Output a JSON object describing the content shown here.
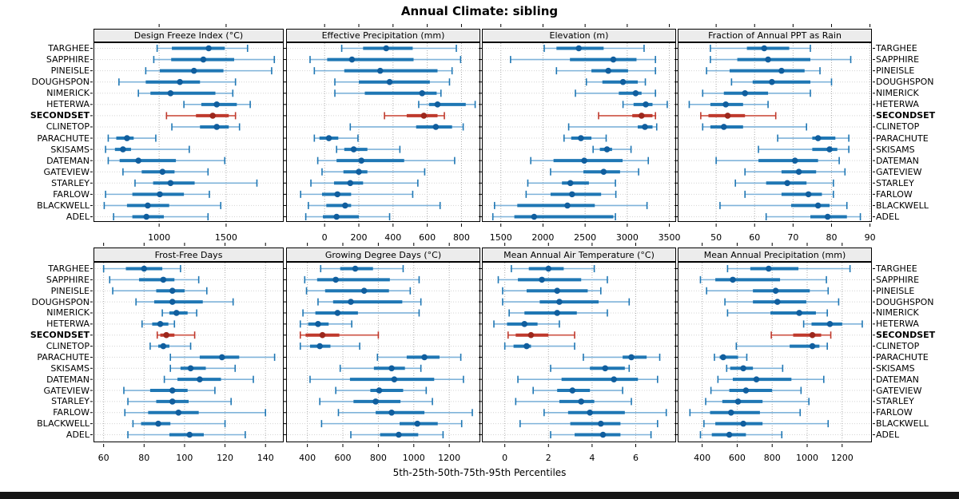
{
  "title": "Annual Climate: sibling",
  "footer": "5th-25th-50th-75th-95th Percentiles",
  "percentiles": [
    5,
    25,
    50,
    75,
    95
  ],
  "highlight_site": "SECONDSET",
  "sites": [
    "TARGHEE",
    "SAPPHIRE",
    "PINEISLE",
    "DOUGHSPON",
    "NIMERICK",
    "HETERWA",
    "SECONDSET",
    "CLINETOP",
    "PARACHUTE",
    "SKISAMS",
    "DATEMAN",
    "GATEVIEW",
    "STARLEY",
    "FARLOW",
    "BLACKWELL",
    "ADEL"
  ],
  "colors": {
    "bar_blue": "#1f77b4",
    "whisker_blue": "#7fb3da",
    "dot_blue": "#105e9e",
    "bar_red": "#bf392c",
    "whisker_red": "#cd5243",
    "dot_red": "#9c271c",
    "grid": "#ababab",
    "row_guide": "#d4d4d4",
    "panel_border": "#000000",
    "header_bg": "#ececec",
    "bottom_bar": "#161616"
  },
  "chart_data": [
    {
      "type": "percentile_dotplot",
      "title": "Design Freeze Index (°C)",
      "xlim": [
        510,
        1930
      ],
      "ticks": [
        1000,
        1500
      ],
      "values": [
        [
          985,
          1095,
          1370,
          1490,
          1660
        ],
        [
          960,
          1090,
          1330,
          1560,
          1860
        ],
        [
          900,
          1005,
          1260,
          1480,
          1840
        ],
        [
          700,
          900,
          1155,
          1305,
          1570
        ],
        [
          845,
          935,
          1085,
          1420,
          1550
        ],
        [
          1185,
          1315,
          1430,
          1580,
          1680
        ],
        [
          1055,
          1275,
          1400,
          1520,
          1570
        ],
        [
          1095,
          1305,
          1430,
          1520,
          1600
        ],
        [
          620,
          680,
          760,
          810,
          975
        ],
        [
          600,
          670,
          730,
          790,
          1225
        ],
        [
          620,
          705,
          845,
          1125,
          1490
        ],
        [
          730,
          870,
          1025,
          1115,
          1365
        ],
        [
          820,
          955,
          1085,
          1265,
          1730
        ],
        [
          600,
          800,
          1005,
          1185,
          1375
        ],
        [
          590,
          760,
          915,
          1075,
          1460
        ],
        [
          660,
          800,
          905,
          1035,
          1365
        ]
      ]
    },
    {
      "type": "percentile_dotplot",
      "title": "Effective Precipitation (mm)",
      "xlim": [
        -225,
        910
      ],
      "ticks": [
        0,
        200,
        400,
        600,
        800
      ],
      "values": [
        [
          100,
          225,
          360,
          515,
          770
        ],
        [
          -85,
          15,
          160,
          520,
          795
        ],
        [
          -60,
          115,
          325,
          660,
          745
        ],
        [
          60,
          200,
          380,
          615,
          730
        ],
        [
          60,
          235,
          570,
          655,
          680
        ],
        [
          550,
          610,
          660,
          825,
          880
        ],
        [
          350,
          480,
          580,
          660,
          700
        ],
        [
          150,
          535,
          650,
          745,
          810
        ],
        [
          -60,
          -30,
          25,
          80,
          195
        ],
        [
          70,
          115,
          170,
          250,
          440
        ],
        [
          -40,
          70,
          215,
          465,
          760
        ],
        [
          -15,
          110,
          200,
          250,
          585
        ],
        [
          -80,
          55,
          150,
          225,
          545
        ],
        [
          -140,
          -15,
          75,
          155,
          515
        ],
        [
          -95,
          10,
          120,
          155,
          675
        ],
        [
          -110,
          -10,
          70,
          200,
          380
        ]
      ]
    },
    {
      "type": "percentile_dotplot",
      "title": "Elevation (m)",
      "xlim": [
        1275,
        3580
      ],
      "ticks": [
        1500,
        2000,
        2500,
        3000,
        3500
      ],
      "values": [
        [
          2015,
          2160,
          2425,
          2720,
          3200
        ],
        [
          1615,
          2320,
          2835,
          3110,
          3335
        ],
        [
          2160,
          2575,
          2775,
          3010,
          3335
        ],
        [
          2515,
          2705,
          2950,
          3125,
          3215
        ],
        [
          2385,
          2900,
          3100,
          3170,
          3335
        ],
        [
          2950,
          3075,
          3220,
          3300,
          3475
        ],
        [
          2660,
          3060,
          3170,
          3300,
          3335
        ],
        [
          2305,
          3125,
          3210,
          3300,
          3350
        ],
        [
          2250,
          2335,
          2450,
          2575,
          2750
        ],
        [
          2595,
          2675,
          2760,
          2820,
          3045
        ],
        [
          1855,
          2125,
          2490,
          2945,
          3250
        ],
        [
          2090,
          2480,
          2720,
          2915,
          3135
        ],
        [
          1820,
          2225,
          2325,
          2545,
          2860
        ],
        [
          1800,
          2090,
          2345,
          2690,
          2865
        ],
        [
          1425,
          1695,
          2290,
          2615,
          3235
        ],
        [
          1405,
          1660,
          1895,
          2835,
          2860
        ]
      ]
    },
    {
      "type": "percentile_dotplot",
      "title": "Fraction of Annual PPT as Rain",
      "xlim": [
        40,
        90.5
      ],
      "ticks": [
        50,
        60,
        70,
        80,
        90
      ],
      "values": [
        [
          48.5,
          58,
          62.5,
          69,
          74.5
        ],
        [
          48.5,
          55.5,
          63.5,
          74.5,
          85
        ],
        [
          47.5,
          53.5,
          67,
          73,
          77
        ],
        [
          54,
          59.5,
          64.5,
          74.5,
          80
        ],
        [
          46.5,
          52,
          57.5,
          63.5,
          74.5
        ],
        [
          43,
          48.5,
          52.5,
          57,
          63.5
        ],
        [
          46,
          48,
          53,
          57.5,
          65.5
        ],
        [
          46.5,
          48.5,
          52,
          57,
          73.5
        ],
        [
          66,
          75,
          76.5,
          81,
          84.5
        ],
        [
          61,
          75,
          79.5,
          81.5,
          84.5
        ],
        [
          50,
          61,
          70.5,
          76.5,
          82
        ],
        [
          57.5,
          67,
          71.5,
          76,
          83.5
        ],
        [
          55,
          63,
          68.5,
          73.5,
          80.5
        ],
        [
          57.5,
          67,
          74,
          77.5,
          80.5
        ],
        [
          51,
          69.5,
          76.5,
          79.5,
          84
        ],
        [
          63,
          74.5,
          79,
          84,
          87.5
        ]
      ]
    },
    {
      "type": "percentile_dotplot",
      "title": "Frost-Free Days",
      "xlim": [
        55,
        149
      ],
      "ticks": [
        60,
        80,
        100,
        120,
        140
      ],
      "values": [
        [
          60,
          71,
          80,
          89,
          98
        ],
        [
          63,
          77.5,
          89.5,
          95,
          107
        ],
        [
          64.5,
          86,
          94,
          100,
          111
        ],
        [
          76,
          85,
          94,
          109,
          124
        ],
        [
          89,
          92.5,
          96,
          101.5,
          106
        ],
        [
          79,
          84,
          88,
          92,
          95
        ],
        [
          86.5,
          88,
          91,
          95,
          105
        ],
        [
          83,
          87,
          89.5,
          92.5,
          103
        ],
        [
          93,
          107.5,
          118.5,
          127,
          144.5
        ],
        [
          93,
          98,
          103,
          110.5,
          125
        ],
        [
          90,
          96.5,
          107.5,
          118,
          134
        ],
        [
          70,
          83,
          94,
          101.5,
          115
        ],
        [
          72,
          86,
          94,
          102,
          123
        ],
        [
          70.5,
          82,
          97,
          107,
          140
        ],
        [
          74.5,
          78.5,
          87,
          93,
          120
        ],
        [
          72,
          92.5,
          102.5,
          109.5,
          130
        ]
      ]
    },
    {
      "type": "percentile_dotplot",
      "title": "Growing Degree Days (°C)",
      "xlim": [
        280,
        1375
      ],
      "ticks": [
        400,
        600,
        800,
        1000,
        1200
      ],
      "values": [
        [
          475,
          585,
          670,
          770,
          940
        ],
        [
          385,
          455,
          560,
          865,
          1030
        ],
        [
          395,
          500,
          720,
          860,
          980
        ],
        [
          460,
          545,
          645,
          935,
          1040
        ],
        [
          375,
          445,
          570,
          685,
          1030
        ],
        [
          360,
          405,
          460,
          520,
          650
        ],
        [
          360,
          390,
          485,
          580,
          800
        ],
        [
          360,
          415,
          470,
          530,
          695
        ],
        [
          795,
          960,
          1060,
          1145,
          1265
        ],
        [
          585,
          775,
          875,
          950,
          1040
        ],
        [
          415,
          640,
          890,
          1115,
          1280
        ],
        [
          560,
          755,
          805,
          940,
          1070
        ],
        [
          470,
          660,
          785,
          925,
          1105
        ],
        [
          575,
          785,
          875,
          1060,
          1330
        ],
        [
          480,
          920,
          1020,
          1135,
          1270
        ],
        [
          645,
          810,
          915,
          1025,
          1165
        ]
      ]
    },
    {
      "type": "percentile_dotplot",
      "title": "Mean Annual Air Temperature (°C)",
      "xlim": [
        -1.05,
        7.85
      ],
      "ticks": [
        0,
        2,
        4,
        6
      ],
      "values": [
        [
          0.3,
          1.1,
          2.0,
          2.7,
          4.1
        ],
        [
          -0.3,
          0.6,
          1.7,
          3.5,
          4.7
        ],
        [
          -0.1,
          1.0,
          2.4,
          3.8,
          4.4
        ],
        [
          -0.1,
          1.6,
          2.5,
          4.3,
          5.7
        ],
        [
          0.2,
          0.9,
          2.4,
          3.3,
          4.7
        ],
        [
          -0.5,
          0.1,
          0.9,
          1.5,
          2.5
        ],
        [
          0.15,
          0.5,
          1.2,
          2.0,
          3.2
        ],
        [
          0.0,
          0.4,
          1.0,
          1.2,
          3.2
        ],
        [
          3.6,
          5.4,
          5.8,
          6.5,
          7.1
        ],
        [
          2.1,
          3.9,
          4.6,
          5.5,
          5.7
        ],
        [
          0.6,
          2.6,
          5.0,
          6.1,
          7.0
        ],
        [
          1.3,
          2.4,
          3.1,
          3.9,
          5.4
        ],
        [
          0.5,
          2.5,
          3.5,
          4.1,
          5.8
        ],
        [
          1.8,
          2.9,
          3.9,
          5.5,
          7.4
        ],
        [
          0.7,
          3.0,
          4.4,
          5.3,
          7.0
        ],
        [
          2.1,
          3.2,
          4.5,
          5.3,
          6.7
        ]
      ]
    },
    {
      "type": "percentile_dotplot",
      "title": "Mean Annual Precipitation (mm)",
      "xlim": [
        260,
        1370
      ],
      "ticks": [
        400,
        600,
        800,
        1000,
        1200
      ],
      "values": [
        [
          545,
          675,
          780,
          950,
          1245
        ],
        [
          390,
          475,
          575,
          845,
          1110
        ],
        [
          425,
          690,
          820,
          1015,
          1120
        ],
        [
          530,
          690,
          830,
          995,
          1180
        ],
        [
          545,
          790,
          955,
          1050,
          1115
        ],
        [
          980,
          1025,
          1130,
          1200,
          1315
        ],
        [
          795,
          920,
          1030,
          1080,
          1135
        ],
        [
          595,
          900,
          1030,
          1070,
          1115
        ],
        [
          470,
          500,
          520,
          605,
          655
        ],
        [
          540,
          560,
          635,
          690,
          860
        ],
        [
          490,
          575,
          710,
          910,
          1095
        ],
        [
          450,
          555,
          650,
          800,
          965
        ],
        [
          420,
          515,
          605,
          745,
          1010
        ],
        [
          330,
          445,
          565,
          730,
          960
        ],
        [
          410,
          475,
          635,
          745,
          1120
        ],
        [
          390,
          455,
          555,
          650,
          855
        ]
      ]
    }
  ]
}
